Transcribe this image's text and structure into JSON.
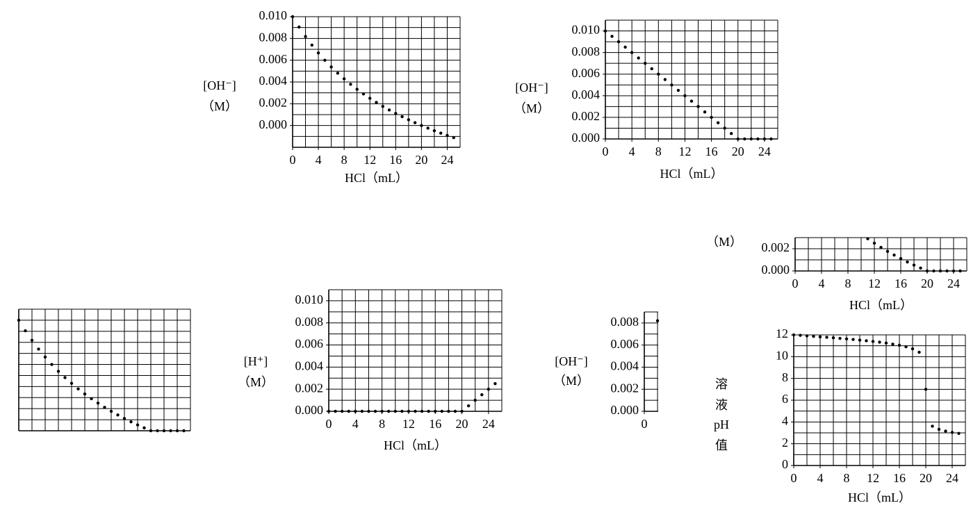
{
  "chart_data": [
    {
      "type": "scatter",
      "color": "#000000",
      "xlabel": "HCl（mL）",
      "ylabel": [
        "[OH⁻]",
        "（M）"
      ],
      "x": [
        0,
        1,
        2,
        3,
        4,
        5,
        6,
        7,
        8,
        9,
        10,
        11,
        12,
        13,
        14,
        15,
        16,
        17,
        18,
        19,
        20,
        21,
        22,
        23,
        24,
        25
      ],
      "values": [
        0.01,
        0.00905,
        0.00818,
        0.00739,
        0.00667,
        0.006,
        0.00538,
        0.00481,
        0.00429,
        0.00379,
        0.00333,
        0.0029,
        0.0025,
        0.00212,
        0.00176,
        0.00143,
        0.00111,
        0.00081,
        0.00053,
        0.00026,
        0,
        -0.00024,
        -0.00048,
        -0.0007,
        -0.00091,
        -0.00111
      ],
      "xlim": [
        0,
        26
      ],
      "ylim": [
        -0.002,
        0.01
      ],
      "xticks": [
        0,
        4,
        8,
        12,
        16,
        20,
        24
      ],
      "yticks": [
        {
          "value": 0,
          "label": "0.000"
        },
        {
          "value": 0.002,
          "label": "0.002"
        },
        {
          "value": 0.004,
          "label": "0.004"
        },
        {
          "value": 0.006,
          "label": "0.006"
        },
        {
          "value": 0.008,
          "label": "0.008"
        },
        {
          "value": 0.01,
          "label": "0.010"
        }
      ],
      "x_grid": [
        0,
        2,
        4,
        6,
        8,
        10,
        12,
        14,
        16,
        18,
        20,
        22,
        24,
        26
      ],
      "y_grid": [
        -0.002,
        -0.001,
        0,
        0.001,
        0.002,
        0.003,
        0.004,
        0.005,
        0.006,
        0.007,
        0.008,
        0.009,
        0.01
      ]
    },
    {
      "type": "scatter",
      "color": "#000000",
      "xlabel": "HCl（mL）",
      "ylabel": [
        "[OH⁻]",
        "（M）"
      ],
      "x": [
        0,
        1,
        2,
        3,
        4,
        5,
        6,
        7,
        8,
        9,
        10,
        11,
        12,
        13,
        14,
        15,
        16,
        17,
        18,
        19,
        20,
        21,
        22,
        23,
        24,
        25
      ],
      "values": [
        0.01,
        0.0095,
        0.009,
        0.0085,
        0.008,
        0.0075,
        0.007,
        0.0065,
        0.006,
        0.0055,
        0.005,
        0.0045,
        0.004,
        0.0035,
        0.003,
        0.0025,
        0.002,
        0.0015,
        0.001,
        0.0005,
        0,
        0,
        0,
        0,
        0,
        0
      ],
      "xlim": [
        0,
        26
      ],
      "ylim": [
        0,
        0.011
      ],
      "xticks": [
        0,
        4,
        8,
        12,
        16,
        20,
        24
      ],
      "yticks": [
        {
          "value": 0,
          "label": "0.000"
        },
        {
          "value": 0.002,
          "label": "0.002"
        },
        {
          "value": 0.004,
          "label": "0.004"
        },
        {
          "value": 0.006,
          "label": "0.006"
        },
        {
          "value": 0.008,
          "label": "0.008"
        },
        {
          "value": 0.01,
          "label": "0.010"
        }
      ],
      "x_grid": [
        0,
        2,
        4,
        6,
        8,
        10,
        12,
        14,
        16,
        18,
        20,
        22,
        24,
        26
      ],
      "y_grid": [
        0,
        0.001,
        0.002,
        0.003,
        0.004,
        0.005,
        0.006,
        0.007,
        0.008,
        0.009,
        0.01,
        0.011
      ]
    },
    {
      "type": "scatter",
      "color": "#000000",
      "x": [
        0,
        1,
        2,
        3,
        4,
        5,
        6,
        7,
        8,
        9,
        10,
        11,
        12,
        13,
        14,
        15,
        16,
        17,
        18,
        19,
        20,
        21,
        22,
        23,
        24,
        25
      ],
      "values": [
        0.01,
        0.00905,
        0.00818,
        0.00739,
        0.00667,
        0.006,
        0.00538,
        0.00481,
        0.00429,
        0.00379,
        0.00333,
        0.0029,
        0.0025,
        0.00212,
        0.00176,
        0.00143,
        0.00111,
        0.00081,
        0.00053,
        0.00026,
        0,
        0,
        0,
        0,
        0,
        0
      ],
      "xlim": [
        0,
        26
      ],
      "ylim": [
        0,
        0.011
      ],
      "x_grid": [
        0,
        2,
        4,
        6,
        8,
        10,
        12,
        14,
        16,
        18,
        20,
        22,
        24,
        26
      ],
      "y_grid": [
        0,
        0.001,
        0.002,
        0.003,
        0.004,
        0.005,
        0.006,
        0.007,
        0.008,
        0.009,
        0.01,
        0.011
      ]
    },
    {
      "type": "scatter",
      "color": "#000000",
      "xlabel": "HCl（mL）",
      "ylabel": [
        "[H⁺]",
        "（M）"
      ],
      "x": [
        0,
        1,
        2,
        3,
        4,
        5,
        6,
        7,
        8,
        9,
        10,
        11,
        12,
        13,
        14,
        15,
        16,
        17,
        18,
        19,
        20,
        21,
        22,
        23,
        24,
        25
      ],
      "values": [
        0,
        0,
        0,
        0,
        0,
        0,
        0,
        0,
        0,
        0,
        0,
        0,
        0,
        0,
        0,
        0,
        0,
        0,
        0,
        0,
        0,
        0.0005,
        0.001,
        0.0015,
        0.002,
        0.0025
      ],
      "xlim": [
        0,
        26
      ],
      "ylim": [
        0,
        0.011
      ],
      "xticks": [
        0,
        4,
        8,
        12,
        16,
        20,
        24
      ],
      "yticks": [
        {
          "value": 0,
          "label": "0.000"
        },
        {
          "value": 0.002,
          "label": "0.002"
        },
        {
          "value": 0.004,
          "label": "0.004"
        },
        {
          "value": 0.006,
          "label": "0.006"
        },
        {
          "value": 0.008,
          "label": "0.008"
        },
        {
          "value": 0.01,
          "label": "0.010"
        }
      ],
      "x_grid": [
        0,
        2,
        4,
        6,
        8,
        10,
        12,
        14,
        16,
        18,
        20,
        22,
        24,
        26
      ],
      "y_grid": [
        0,
        0.001,
        0.002,
        0.003,
        0.004,
        0.005,
        0.006,
        0.007,
        0.008,
        0.009,
        0.01,
        0.011
      ]
    },
    {
      "type": "scatter",
      "color": "#000000",
      "ylabel": [
        "[OH⁻]",
        "（M）"
      ],
      "x": [
        2
      ],
      "values": [
        0.0082
      ],
      "xlim": [
        0,
        2.1
      ],
      "ylim": [
        0,
        0.009
      ],
      "xticks": [
        0
      ],
      "yticks": [
        {
          "value": 0,
          "label": "0.000"
        },
        {
          "value": 0.002,
          "label": "0.002"
        },
        {
          "value": 0.004,
          "label": "0.004"
        },
        {
          "value": 0.006,
          "label": "0.006"
        },
        {
          "value": 0.008,
          "label": "0.008"
        }
      ],
      "x_grid": [
        0,
        2
      ],
      "y_grid": [
        0,
        0.001,
        0.002,
        0.003,
        0.004,
        0.005,
        0.006,
        0.007,
        0.008,
        0.009
      ]
    },
    {
      "type": "scatter",
      "color": "#000000",
      "xlabel": "HCl（mL）",
      "ylabel": [
        "（M）"
      ],
      "x": [
        11,
        12,
        13,
        14,
        15,
        16,
        17,
        18,
        19,
        20,
        21,
        22,
        23,
        24,
        25
      ],
      "values": [
        0.0029,
        0.0025,
        0.00212,
        0.00176,
        0.00143,
        0.00111,
        0.00081,
        0.00053,
        0.00026,
        0,
        0,
        0,
        0,
        0,
        0
      ],
      "xlim": [
        0,
        26
      ],
      "ylim": [
        0,
        0.003
      ],
      "xticks": [
        0,
        4,
        8,
        12,
        16,
        20,
        24
      ],
      "yticks": [
        {
          "value": 0,
          "label": "0.000"
        },
        {
          "value": 0.002,
          "label": "0.002"
        }
      ],
      "x_grid": [
        0,
        2,
        4,
        6,
        8,
        10,
        12,
        14,
        16,
        18,
        20,
        22,
        24,
        26
      ],
      "y_grid": [
        0,
        0.001,
        0.002,
        0.003
      ]
    },
    {
      "type": "scatter",
      "color": "#000000",
      "xlabel": "HCl（mL）",
      "ylabel": [
        "溶",
        "液",
        "pH",
        "值"
      ],
      "x": [
        0,
        1,
        2,
        3,
        4,
        5,
        6,
        7,
        8,
        9,
        10,
        11,
        12,
        13,
        14,
        15,
        16,
        17,
        18,
        19,
        20,
        21,
        22,
        23,
        24,
        25
      ],
      "values": [
        12,
        11.96,
        11.91,
        11.87,
        11.82,
        11.78,
        11.73,
        11.68,
        11.63,
        11.58,
        11.52,
        11.46,
        11.4,
        11.33,
        11.25,
        11.15,
        11.05,
        10.91,
        10.72,
        10.41,
        7,
        3.61,
        3.32,
        3.16,
        3.04,
        2.95
      ],
      "xlim": [
        0,
        26
      ],
      "ylim": [
        0,
        12
      ],
      "xticks": [
        0,
        4,
        8,
        12,
        16,
        20,
        24
      ],
      "yticks": [
        0,
        2,
        4,
        6,
        8,
        10,
        12
      ],
      "x_grid": [
        0,
        2,
        4,
        6,
        8,
        10,
        12,
        14,
        16,
        18,
        20,
        22,
        24,
        26
      ],
      "y_grid": [
        0,
        1,
        2,
        3,
        4,
        5,
        6,
        7,
        8,
        9,
        10,
        11,
        12
      ]
    }
  ]
}
